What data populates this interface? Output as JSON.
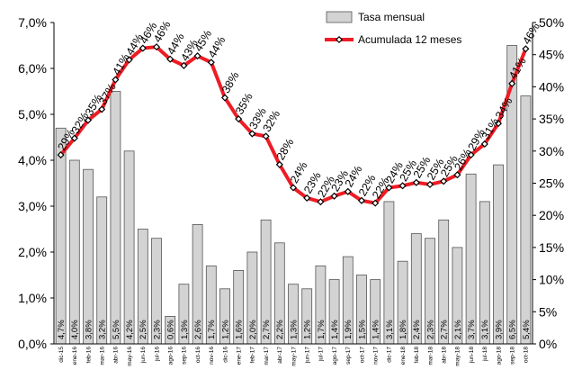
{
  "chart_data": {
    "type": "bar+line",
    "categories": [
      "dic-15",
      "ene-16",
      "feb-16",
      "mar-16",
      "abr-16",
      "may-16",
      "jun-16",
      "jul-16",
      "ago-16",
      "sep-16",
      "oct-16",
      "nov-16",
      "dic-16",
      "ene-17",
      "feb-17",
      "mar-17",
      "abr-17",
      "may-17",
      "jun-17",
      "jul-17",
      "ago-17",
      "sep-17",
      "oct-17",
      "nov-17",
      "dic-17",
      "ene-18",
      "feb-18",
      "mar-18",
      "abr-18",
      "may-18",
      "jun-18",
      "jul-18",
      "ago-18",
      "sep-18",
      "oct-18"
    ],
    "series": [
      {
        "name": "Tasa mensual",
        "type": "bar",
        "axis": "left",
        "values": [
          4.7,
          4.0,
          3.8,
          3.2,
          5.5,
          4.2,
          2.5,
          2.3,
          0.6,
          1.3,
          2.6,
          1.7,
          1.2,
          1.6,
          2.0,
          2.7,
          2.2,
          1.3,
          1.2,
          1.7,
          1.4,
          1.9,
          1.5,
          1.4,
          3.1,
          1.8,
          2.4,
          2.3,
          2.7,
          2.1,
          3.7,
          3.1,
          3.9,
          6.5,
          5.4
        ],
        "labels": [
          "4,7%",
          "4,0%",
          "3,8%",
          "3,2%",
          "5,5%",
          "4,2%",
          "2,5%",
          "2,3%",
          "0,6%",
          "1,3%",
          "2,6%",
          "1,7%",
          "1,2%",
          "1,6%",
          "2,0%",
          "2,7%",
          "2,2%",
          "1,3%",
          "1,2%",
          "1,7%",
          "1,4%",
          "1,9%",
          "1,5%",
          "1,4%",
          "3,1%",
          "1,8%",
          "2,4%",
          "2,3%",
          "2,7%",
          "2,1%",
          "3,7%",
          "3,1%",
          "3,9%",
          "6,5%",
          "5,4%"
        ],
        "color": "#d3d3d3"
      },
      {
        "name": "Acumulada 12 meses",
        "type": "line",
        "axis": "right",
        "values": [
          29.4,
          32.0,
          34.8,
          36.5,
          41.1,
          44.2,
          46.0,
          46.2,
          44.3,
          43.3,
          44.8,
          43.8,
          38.3,
          35.0,
          32.7,
          32.3,
          27.9,
          24.3,
          22.7,
          22.1,
          23.0,
          23.7,
          22.3,
          21.9,
          24.3,
          24.6,
          25.1,
          24.8,
          25.3,
          26.3,
          29.4,
          31.1,
          34.3,
          40.5,
          45.9
        ],
        "labels": [
          "29%",
          "32%",
          "35%",
          "37%",
          "41%",
          "44%",
          "46%",
          "46%",
          "44%",
          "43%",
          "45%",
          "44%",
          "38%",
          "35%",
          "33%",
          "32%",
          "28%",
          "24%",
          "23%",
          "22%",
          "23%",
          "24%",
          "22%",
          "22%",
          "24%",
          "25%",
          "25%",
          "25%",
          "25%",
          "26%",
          "29%",
          "31%",
          "34%",
          "41%",
          "46%"
        ],
        "color": "#ee1c24",
        "marker_color": "#000000"
      }
    ],
    "left_axis": {
      "min": 0,
      "max": 7,
      "ticks": [
        0,
        1,
        2,
        3,
        4,
        5,
        6,
        7
      ],
      "tick_labels": [
        "0,0%",
        "1,0%",
        "2,0%",
        "3,0%",
        "4,0%",
        "5,0%",
        "6,0%",
        "7,0%"
      ]
    },
    "right_axis": {
      "min": 0,
      "max": 50,
      "ticks": [
        0,
        5,
        10,
        15,
        20,
        25,
        30,
        35,
        40,
        45,
        50
      ],
      "tick_labels": [
        "0%",
        "5%",
        "10%",
        "15%",
        "20%",
        "25%",
        "30%",
        "35%",
        "40%",
        "45%",
        "50%"
      ]
    },
    "legend": {
      "placement": "top-right",
      "entries": [
        "Tasa mensual",
        "Acumulada 12 meses"
      ]
    },
    "grid": false,
    "title": "",
    "xlabel": "",
    "ylabel": ""
  }
}
